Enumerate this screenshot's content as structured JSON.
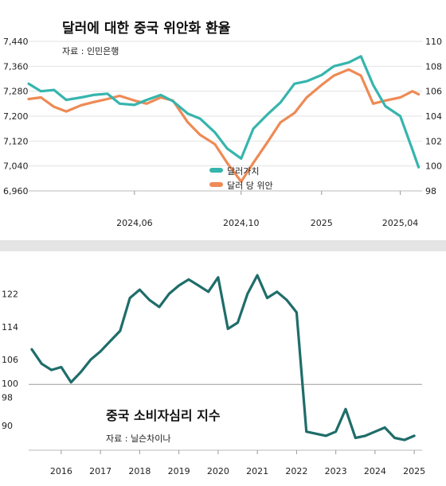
{
  "chart_data": [
    {
      "type": "line",
      "title": "달러에 대한 중국 위안화 환율",
      "source": "자료 : 인민은행",
      "x_ticks": [
        "2024,06",
        "2024,10",
        "2025",
        "2025,04"
      ],
      "y_left_ticks": [
        "7,440",
        "7,360",
        "7,280",
        "7,200",
        "7,120",
        "7,040",
        "6,960"
      ],
      "y_left_lim": [
        6960,
        7440
      ],
      "y_right_ticks": [
        "110",
        "108",
        "106",
        "104",
        "102",
        "100",
        "98"
      ],
      "y_right_lim": [
        98,
        110
      ],
      "grid": "horizontal",
      "legend_position": "bottom-right",
      "colors": {
        "dollar_index": "#36b5ad",
        "usd_cny": "#ee8a55"
      },
      "series": [
        {
          "name": "달러가치",
          "axis": "right",
          "x": [
            "2024-02-01",
            "2024-02-15",
            "2024-03-01",
            "2024-03-15",
            "2024-04-01",
            "2024-04-15",
            "2024-05-01",
            "2024-05-15",
            "2024-06-01",
            "2024-06-15",
            "2024-07-01",
            "2024-07-15",
            "2024-08-01",
            "2024-08-15",
            "2024-09-01",
            "2024-09-15",
            "2024-10-01",
            "2024-10-15",
            "2024-11-01",
            "2024-11-15",
            "2024-12-01",
            "2024-12-15",
            "2025-01-01",
            "2025-01-15",
            "2025-02-01",
            "2025-02-15",
            "2025-03-01",
            "2025-03-15",
            "2025-04-01",
            "2025-04-15",
            "2025-04-22"
          ],
          "values": [
            106.6,
            106.0,
            106.1,
            105.3,
            105.5,
            105.7,
            105.8,
            105.0,
            104.9,
            105.3,
            105.7,
            105.2,
            104.2,
            103.8,
            102.7,
            101.4,
            100.6,
            103.0,
            104.2,
            105.1,
            106.6,
            106.8,
            107.3,
            108.0,
            108.3,
            108.8,
            106.5,
            104.8,
            104.0,
            101.3,
            99.9
          ]
        },
        {
          "name": "달러 당 위안",
          "axis": "left",
          "x": [
            "2024-02-01",
            "2024-02-15",
            "2024-03-01",
            "2024-03-15",
            "2024-04-01",
            "2024-04-15",
            "2024-05-01",
            "2024-05-15",
            "2024-06-01",
            "2024-06-15",
            "2024-07-01",
            "2024-07-15",
            "2024-08-01",
            "2024-08-15",
            "2024-09-01",
            "2024-09-15",
            "2024-10-01",
            "2024-10-15",
            "2024-11-01",
            "2024-11-15",
            "2024-12-01",
            "2024-12-15",
            "2025-01-01",
            "2025-01-15",
            "2025-02-01",
            "2025-02-15",
            "2025-03-01",
            "2025-03-15",
            "2025-04-01",
            "2025-04-15",
            "2025-04-22"
          ],
          "values": [
            7255,
            7260,
            7230,
            7215,
            7235,
            7245,
            7255,
            7265,
            7250,
            7240,
            7260,
            7250,
            7180,
            7140,
            7110,
            7050,
            6990,
            7050,
            7120,
            7180,
            7210,
            7260,
            7300,
            7330,
            7350,
            7330,
            7240,
            7250,
            7260,
            7280,
            7270
          ]
        }
      ]
    },
    {
      "type": "line",
      "title": "중국 소비자심리 지수",
      "source": "자료 : 닐슨차이나",
      "x_ticks": [
        "2016",
        "2017",
        "2018",
        "2019",
        "2020",
        "2021",
        "2022",
        "2023",
        "2024",
        "2025"
      ],
      "y_ticks": [
        "122",
        "114",
        "106",
        "100",
        "98",
        "90"
      ],
      "ylim": [
        84,
        130
      ],
      "reference_line": 100,
      "color": "#1f6d6a",
      "series": [
        {
          "name": "중국 소비자심리 지수",
          "x": [
            2015.25,
            2015.5,
            2015.75,
            2016.0,
            2016.25,
            2016.5,
            2016.75,
            2017.0,
            2017.25,
            2017.5,
            2017.75,
            2018.0,
            2018.25,
            2018.5,
            2018.75,
            2019.0,
            2019.25,
            2019.5,
            2019.75,
            2020.0,
            2020.25,
            2020.5,
            2020.75,
            2021.0,
            2021.25,
            2021.5,
            2021.75,
            2022.0,
            2022.25,
            2022.5,
            2022.75,
            2023.0,
            2023.25,
            2023.5,
            2023.75,
            2024.0,
            2024.25,
            2024.5,
            2024.75,
            2025.0
          ],
          "values": [
            108.5,
            105.0,
            103.5,
            104.2,
            100.5,
            103.0,
            106.0,
            108.0,
            110.5,
            113.0,
            121.0,
            123.0,
            120.5,
            118.8,
            122.0,
            124.0,
            125.5,
            124.0,
            122.5,
            126.0,
            113.5,
            115.0,
            122.0,
            126.5,
            121.0,
            122.5,
            120.5,
            117.5,
            88.5,
            88.0,
            87.5,
            88.5,
            94.0,
            87.0,
            87.5,
            88.5,
            89.5,
            87.0,
            86.5,
            87.5
          ]
        }
      ]
    }
  ]
}
